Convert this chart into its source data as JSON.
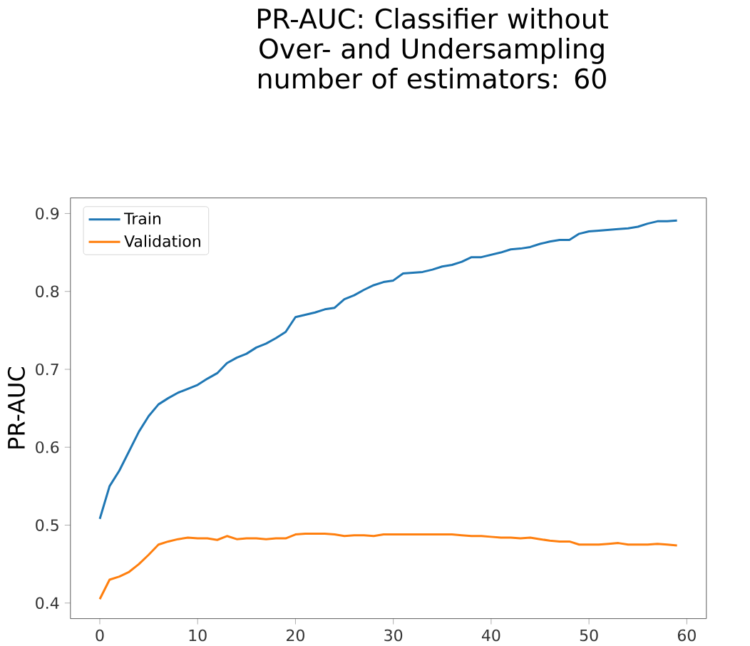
{
  "chart_data": {
    "type": "line",
    "title": "PR-AUC: Classifier without Over- and Undersampling",
    "subtitle": "number of estimators: 60",
    "ylabel": "PR-AUC",
    "x": [
      0,
      1,
      2,
      3,
      4,
      5,
      6,
      7,
      8,
      9,
      10,
      11,
      12,
      13,
      14,
      15,
      16,
      17,
      18,
      19,
      20,
      21,
      22,
      23,
      24,
      25,
      26,
      27,
      28,
      29,
      30,
      31,
      32,
      33,
      34,
      35,
      36,
      37,
      38,
      39,
      40,
      41,
      42,
      43,
      44,
      45,
      46,
      47,
      48,
      49,
      50,
      51,
      52,
      53,
      54,
      55,
      56,
      57,
      58,
      59
    ],
    "series": [
      {
        "name": "Train",
        "color": "#1f77b4",
        "values": [
          0.508,
          0.55,
          0.57,
          0.595,
          0.62,
          0.64,
          0.655,
          0.663,
          0.67,
          0.675,
          0.68,
          0.688,
          0.695,
          0.708,
          0.715,
          0.72,
          0.728,
          0.733,
          0.74,
          0.748,
          0.767,
          0.77,
          0.773,
          0.777,
          0.779,
          0.79,
          0.795,
          0.802,
          0.808,
          0.812,
          0.814,
          0.823,
          0.824,
          0.825,
          0.828,
          0.832,
          0.834,
          0.838,
          0.844,
          0.844,
          0.847,
          0.85,
          0.854,
          0.855,
          0.857,
          0.861,
          0.864,
          0.866,
          0.866,
          0.874,
          0.877,
          0.878,
          0.879,
          0.88,
          0.881,
          0.883,
          0.887,
          0.89,
          0.89,
          0.891
        ]
      },
      {
        "name": "Validation",
        "color": "#ff7f0e",
        "values": [
          0.405,
          0.43,
          0.434,
          0.44,
          0.45,
          0.462,
          0.475,
          0.479,
          0.482,
          0.484,
          0.483,
          0.483,
          0.481,
          0.486,
          0.482,
          0.483,
          0.483,
          0.482,
          0.483,
          0.483,
          0.488,
          0.489,
          0.489,
          0.489,
          0.488,
          0.486,
          0.487,
          0.487,
          0.486,
          0.488,
          0.488,
          0.488,
          0.488,
          0.488,
          0.488,
          0.488,
          0.488,
          0.487,
          0.486,
          0.486,
          0.485,
          0.484,
          0.484,
          0.483,
          0.484,
          0.482,
          0.48,
          0.479,
          0.479,
          0.475,
          0.475,
          0.475,
          0.476,
          0.477,
          0.475,
          0.475,
          0.475,
          0.476,
          0.475,
          0.474
        ]
      }
    ],
    "xlim": [
      -3,
      62
    ],
    "ylim": [
      0.38,
      0.92
    ],
    "xticks": [
      0,
      10,
      20,
      30,
      40,
      50,
      60
    ],
    "yticks": [
      0.4,
      0.5,
      0.6,
      0.7,
      0.8,
      0.9
    ],
    "legend": "top left",
    "grid": false,
    "marker": "none",
    "line_style": "solid"
  }
}
